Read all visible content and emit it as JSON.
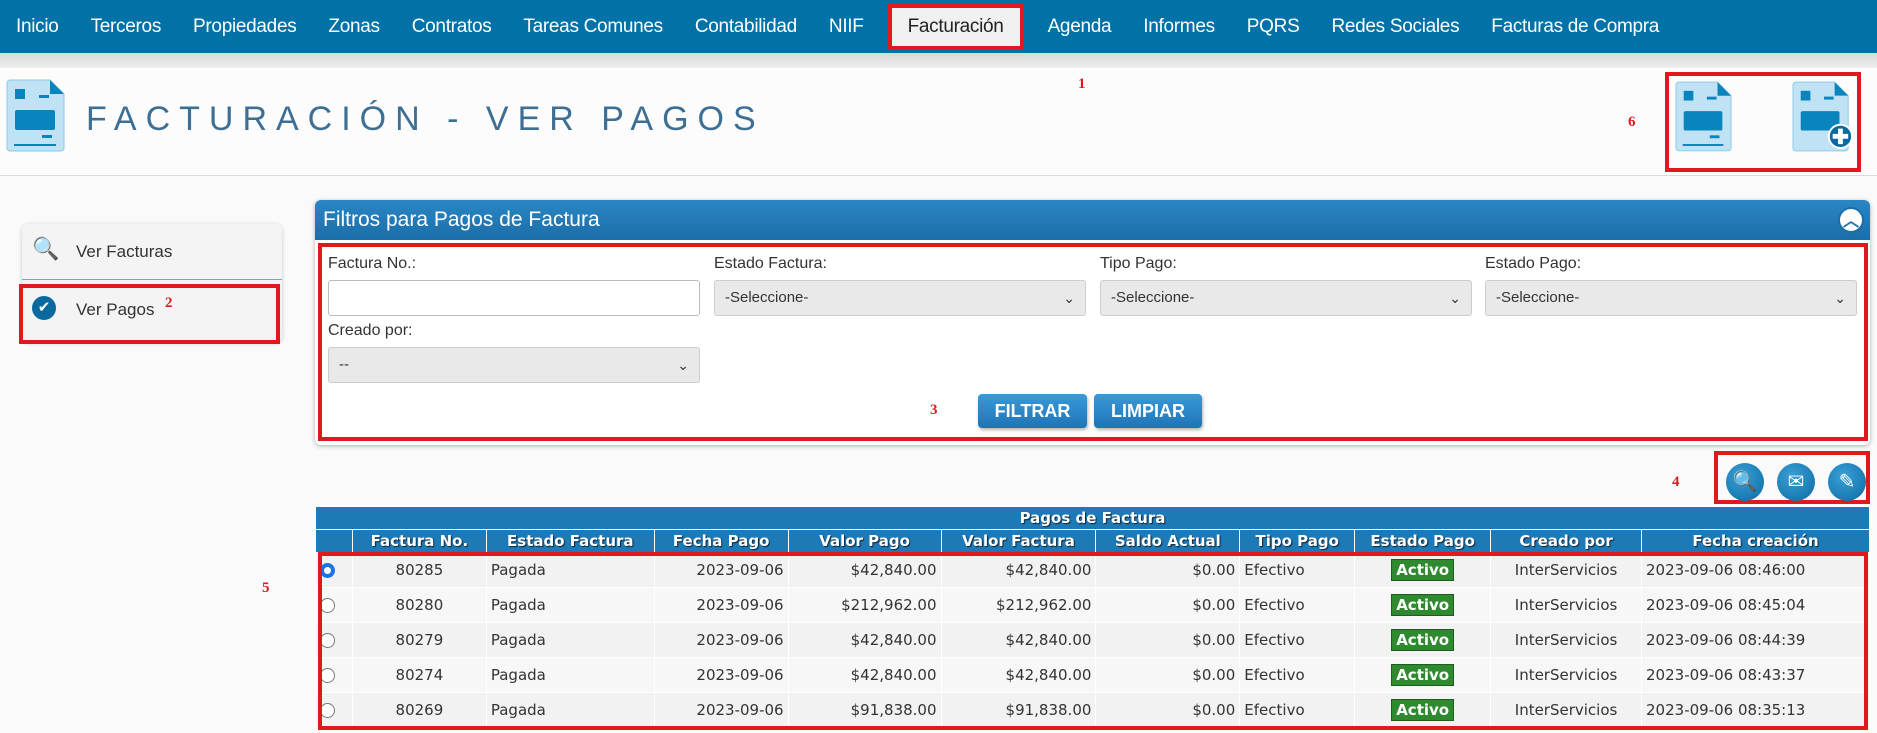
{
  "nav": {
    "items": [
      "Inicio",
      "Terceros",
      "Propiedades",
      "Zonas",
      "Contratos",
      "Tareas Comunes",
      "Contabilidad",
      "NIIF",
      "Facturación",
      "Agenda",
      "Informes",
      "PQRS",
      "Redes Sociales",
      "Facturas de Compra"
    ],
    "active": "Facturación"
  },
  "header": {
    "title": "FACTURACIÓN - VER PAGOS",
    "icons": [
      "invoice-icon",
      "new-invoice-icon"
    ]
  },
  "sidebar": {
    "items": [
      {
        "label": "Ver Facturas",
        "icon": "invoice-search-icon"
      },
      {
        "label": "Ver Pagos",
        "icon": "invoice-check-icon"
      }
    ]
  },
  "filters": {
    "title": "Filtros para Pagos de Factura",
    "factura_label": "Factura No.:",
    "factura_value": "",
    "estado_factura_label": "Estado Factura:",
    "estado_factura_value": "-Seleccione-",
    "tipo_pago_label": "Tipo Pago:",
    "tipo_pago_value": "-Seleccione-",
    "estado_pago_label": "Estado Pago:",
    "estado_pago_value": "-Seleccione-",
    "creado_label": "Creado por:",
    "creado_value": "--",
    "filtrar": "FILTRAR",
    "limpiar": "LIMPIAR"
  },
  "actions": [
    "search-icon",
    "email-icon",
    "edit-icon"
  ],
  "table": {
    "title": "Pagos de Factura",
    "columns": [
      "",
      "Factura No.",
      "Estado Factura",
      "Fecha Pago",
      "Valor Pago",
      "Valor Factura",
      "Saldo Actual",
      "Tipo Pago",
      "Estado Pago",
      "Creado por",
      "Fecha creación"
    ],
    "rows": [
      {
        "selected": true,
        "factura": "80285",
        "estado": "Pagada",
        "fecha": "2023-09-06",
        "valor_pago": "$42,840.00",
        "valor_factura": "$42,840.00",
        "saldo": "$0.00",
        "tipo": "Efectivo",
        "estado_pago": "Activo",
        "creado": "InterServicios",
        "fecha_creacion": "2023-09-06 08:46:00"
      },
      {
        "selected": false,
        "factura": "80280",
        "estado": "Pagada",
        "fecha": "2023-09-06",
        "valor_pago": "$212,962.00",
        "valor_factura": "$212,962.00",
        "saldo": "$0.00",
        "tipo": "Efectivo",
        "estado_pago": "Activo",
        "creado": "InterServicios",
        "fecha_creacion": "2023-09-06 08:45:04"
      },
      {
        "selected": false,
        "factura": "80279",
        "estado": "Pagada",
        "fecha": "2023-09-06",
        "valor_pago": "$42,840.00",
        "valor_factura": "$42,840.00",
        "saldo": "$0.00",
        "tipo": "Efectivo",
        "estado_pago": "Activo",
        "creado": "InterServicios",
        "fecha_creacion": "2023-09-06 08:44:39"
      },
      {
        "selected": false,
        "factura": "80274",
        "estado": "Pagada",
        "fecha": "2023-09-06",
        "valor_pago": "$42,840.00",
        "valor_factura": "$42,840.00",
        "saldo": "$0.00",
        "tipo": "Efectivo",
        "estado_pago": "Activo",
        "creado": "InterServicios",
        "fecha_creacion": "2023-09-06 08:43:37"
      },
      {
        "selected": false,
        "factura": "80269",
        "estado": "Pagada",
        "fecha": "2023-09-06",
        "valor_pago": "$91,838.00",
        "valor_factura": "$91,838.00",
        "saldo": "$0.00",
        "tipo": "Efectivo",
        "estado_pago": "Activo",
        "creado": "InterServicios",
        "fecha_creacion": "2023-09-06 08:35:13"
      }
    ]
  },
  "annotations": [
    "1",
    "2",
    "3",
    "4",
    "5",
    "6"
  ],
  "colors": {
    "nav": "#0072a8",
    "highlight": "#e0191f",
    "badge": "#2f8a2f",
    "table_header": "#1e7ab6"
  }
}
